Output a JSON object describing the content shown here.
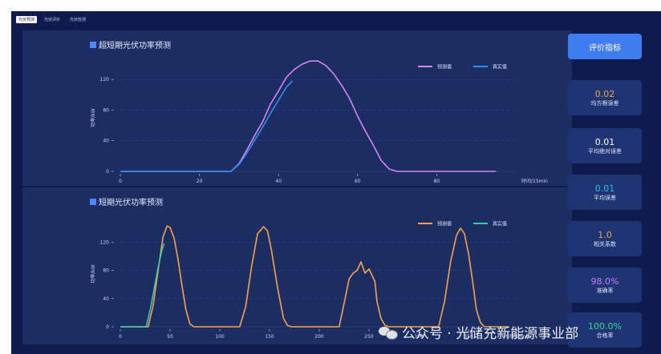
{
  "tabs": [
    {
      "label": "光伏预测"
    },
    {
      "label": "光伏评价"
    },
    {
      "label": "光伏检测"
    }
  ],
  "metrics": {
    "button_label": "评价指标",
    "cards": [
      {
        "value": "0.02",
        "label": "均方根误差",
        "color": "#f5a442"
      },
      {
        "value": "0.01",
        "label": "平均绝对误差",
        "color": "#ffffff"
      },
      {
        "value": "0.01",
        "label": "平均误差",
        "color": "#22c3e6"
      },
      {
        "value": "1.0",
        "label": "相关系数",
        "color": "#f5a442"
      },
      {
        "value": "98.0%",
        "label": "准确率",
        "color": "#c77dff"
      },
      {
        "value": "100.0%",
        "label": "合格率",
        "color": "#39d98a"
      }
    ]
  },
  "watermark": {
    "text": "公众号 · 光储充新能源事业部"
  },
  "chart_data": [
    {
      "type": "line",
      "title": "超短期光伏功率预测",
      "xlabel": "时间/15min",
      "ylabel": "功率/kW",
      "xlim": [
        0,
        100
      ],
      "ylim": [
        0,
        140
      ],
      "xticks": [
        0,
        20,
        40,
        60,
        80
      ],
      "yticks": [
        0,
        40,
        80,
        120
      ],
      "legend_position": "top-right",
      "series": [
        {
          "name": "预测值",
          "color": "#d884f0",
          "x": [
            0,
            28,
            30,
            32,
            34,
            36,
            38,
            40,
            42,
            44,
            46,
            48,
            50,
            52,
            54,
            56,
            58,
            60,
            62,
            64,
            66,
            68,
            70,
            95
          ],
          "y": [
            0,
            0,
            10,
            28,
            47,
            65,
            88,
            105,
            123,
            133,
            140,
            144,
            144,
            138,
            127,
            112,
            95,
            72,
            52,
            34,
            14,
            3,
            0,
            0
          ]
        },
        {
          "name": "真实值",
          "color": "#2f8ff0",
          "x": [
            0,
            28,
            30,
            32,
            34,
            36,
            38,
            40,
            42,
            43.5
          ],
          "y": [
            0,
            0,
            9,
            24,
            41,
            58,
            76,
            93,
            110,
            118
          ]
        }
      ]
    },
    {
      "type": "line",
      "title": "短期光伏功率预测",
      "xlabel": "时间/15min",
      "ylabel": "功率/kW",
      "xlim": [
        0,
        400
      ],
      "ylim": [
        0,
        150
      ],
      "xticks": [
        0,
        50,
        100,
        150,
        200,
        250,
        300,
        350
      ],
      "yticks": [
        0,
        40,
        80,
        120
      ],
      "legend_position": "top-right",
      "series": [
        {
          "name": "预测值",
          "color": "#f5a34a",
          "x": [
            0,
            28,
            33,
            38,
            43,
            47,
            50,
            54,
            58,
            62,
            66,
            70,
            74,
            120,
            126,
            132,
            138,
            144,
            148,
            152,
            158,
            164,
            168,
            172,
            220,
            226,
            230,
            234,
            238,
            242,
            246,
            250,
            254,
            256,
            258,
            262,
            266,
            270,
            274,
            320,
            326,
            332,
            338,
            342,
            346,
            350,
            354,
            358,
            362,
            366,
            370,
            390
          ],
          "y": [
            0,
            0,
            30,
            80,
            128,
            143,
            141,
            126,
            96,
            58,
            24,
            4,
            0,
            0,
            28,
            86,
            132,
            142,
            136,
            108,
            56,
            12,
            2,
            0,
            0,
            40,
            68,
            76,
            80,
            92,
            76,
            82,
            70,
            64,
            36,
            12,
            2,
            0,
            0,
            0,
            36,
            92,
            130,
            140,
            132,
            104,
            66,
            24,
            6,
            0,
            0,
            0
          ]
        },
        {
          "name": "真实值",
          "color": "#3ec9a7",
          "x": [
            0,
            26,
            30,
            34,
            38,
            42,
            44
          ],
          "y": [
            0,
            0,
            24,
            54,
            84,
            110,
            118
          ]
        }
      ]
    }
  ]
}
